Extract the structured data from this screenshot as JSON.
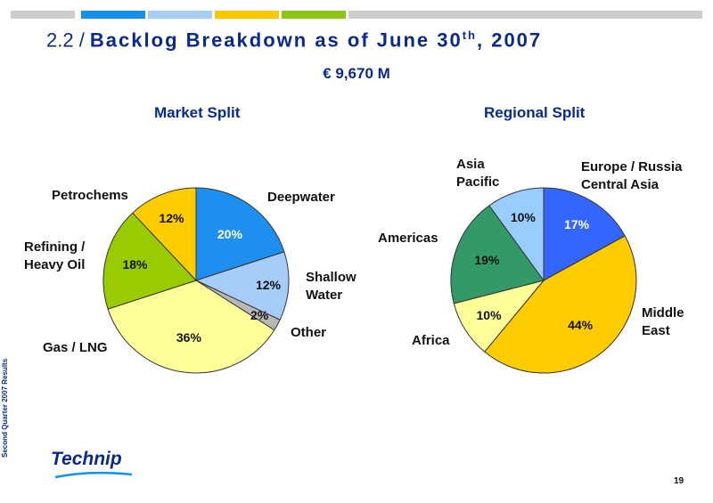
{
  "colors": {
    "top_bar": [
      "#cccccc",
      "#1490e8",
      "#a6cdf4",
      "#f9c800",
      "#8cc418",
      "#cccccc"
    ],
    "title": "#0a2a8a"
  },
  "header": {
    "title_number": "2.2 / ",
    "title_text": "Backlog Breakdown as of June 30",
    "title_sup": "th",
    "title_tail": ", 2007",
    "subtitle": "€ 9,670 M"
  },
  "side_text": "Second Quarter 2007 Results",
  "logo_text": "Technip",
  "page_number": "19",
  "chart_data": [
    {
      "type": "pie",
      "title": "Market Split",
      "slices": [
        {
          "label": "Deepwater",
          "value": 20,
          "pct_label": "20%",
          "color": "#1f8fef"
        },
        {
          "label": "Shallow\nWater",
          "value": 12,
          "pct_label": "12%",
          "color": "#a6cdf8"
        },
        {
          "label": "Other",
          "value": 2,
          "pct_label": "2%",
          "color": "#b8b8b8"
        },
        {
          "label": "Gas / LNG",
          "value": 36,
          "pct_label": "36%",
          "color": "#ffff99"
        },
        {
          "label": "Refining /\nHeavy Oil",
          "value": 18,
          "pct_label": "18%",
          "color": "#99cc00"
        },
        {
          "label": "Petrochems",
          "value": 12,
          "pct_label": "12%",
          "color": "#ffcc00"
        }
      ]
    },
    {
      "type": "pie",
      "title": "Regional Split",
      "slices": [
        {
          "label": "Europe / Russia\nCentral Asia",
          "value": 17,
          "pct_label": "17%",
          "color": "#3366ff"
        },
        {
          "label": "Middle\nEast",
          "value": 44,
          "pct_label": "44%",
          "color": "#ffcc00"
        },
        {
          "label": "Africa",
          "value": 10,
          "pct_label": "10%",
          "color": "#ffff99"
        },
        {
          "label": "Americas",
          "value": 19,
          "pct_label": "19%",
          "color": "#339966"
        },
        {
          "label": "Asia\nPacific",
          "value": 10,
          "pct_label": "10%",
          "color": "#99ccff"
        }
      ]
    }
  ]
}
